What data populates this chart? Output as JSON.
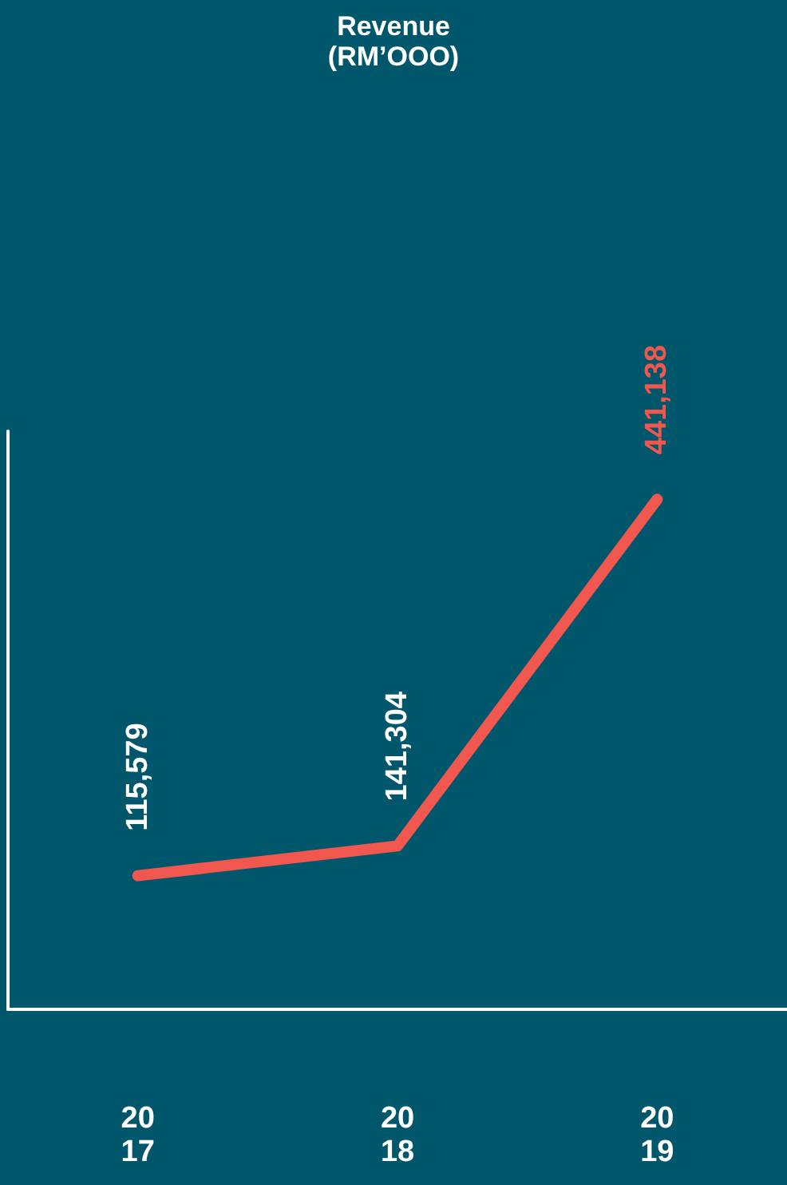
{
  "chart_data": {
    "type": "line",
    "title": "Revenue\n(RM’OOO)",
    "categories": [
      "2017",
      "2018",
      "2019"
    ],
    "series": [
      {
        "color": "#f0574f",
        "values": [
          115579,
          141304,
          441138
        ],
        "value_labels": [
          "115,579",
          "141,304",
          "441,138"
        ]
      }
    ],
    "tick_labels": "x",
    "grid": false,
    "marker": "none",
    "line_style": "solid"
  }
}
